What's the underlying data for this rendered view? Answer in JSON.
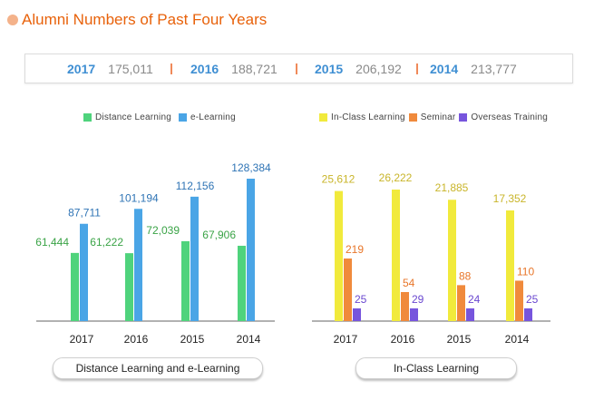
{
  "title": "Alumni Numbers of Past Four Years",
  "summary": [
    {
      "year": "2017",
      "total": "175,011"
    },
    {
      "year": "2016",
      "total": "188,721"
    },
    {
      "year": "2015",
      "total": "206,192"
    },
    {
      "year": "2014",
      "total": "213,777"
    }
  ],
  "colors": {
    "distance": "#4fd37c",
    "elearning": "#4aa5e6",
    "inclass": "#f1ea3c",
    "seminar": "#f08a3c",
    "overseas": "#7755dd",
    "title": "#e8620b",
    "year": "#3f8fd3"
  },
  "chart_data": [
    {
      "type": "bar",
      "categories": [
        "2017",
        "2016",
        "2015",
        "2014"
      ],
      "series": [
        {
          "name": "Distance Learning",
          "values": [
            61444,
            61222,
            72039,
            67906
          ],
          "labels": [
            "61,444",
            "61,222",
            "72,039",
            "67,906"
          ],
          "color": "#4fd37c",
          "label_color": "#3aa346"
        },
        {
          "name": "e-Learning",
          "values": [
            87711,
            101194,
            112156,
            128384
          ],
          "labels": [
            "87,711",
            "101,194",
            "112,156",
            "128,384"
          ],
          "color": "#4aa5e6",
          "label_color": "#2f74b5"
        }
      ],
      "ylim": [
        0,
        140000
      ],
      "legend": "top",
      "caption": "Distance Learning and e-Learning"
    },
    {
      "type": "bar",
      "categories": [
        "2017",
        "2016",
        "2015",
        "2014"
      ],
      "series": [
        {
          "name": "In-Class Learning",
          "values": [
            25612,
            26222,
            21885,
            17352
          ],
          "labels": [
            "25,612",
            "26,222",
            "21,885",
            "17,352"
          ],
          "color": "#f1ea3c",
          "label_color": "#c9b52a"
        },
        {
          "name": "Seminar",
          "values": [
            219,
            54,
            88,
            110
          ],
          "labels": [
            "219",
            "54",
            "88",
            "110"
          ],
          "color": "#f08a3c",
          "label_color": "#e8762a"
        },
        {
          "name": "Overseas Training",
          "values": [
            25,
            29,
            24,
            25
          ],
          "labels": [
            "25",
            "29",
            "24",
            "25"
          ],
          "color": "#7755dd",
          "label_color": "#6a48d0"
        }
      ],
      "legend": "top",
      "caption": "In-Class Learning"
    }
  ]
}
